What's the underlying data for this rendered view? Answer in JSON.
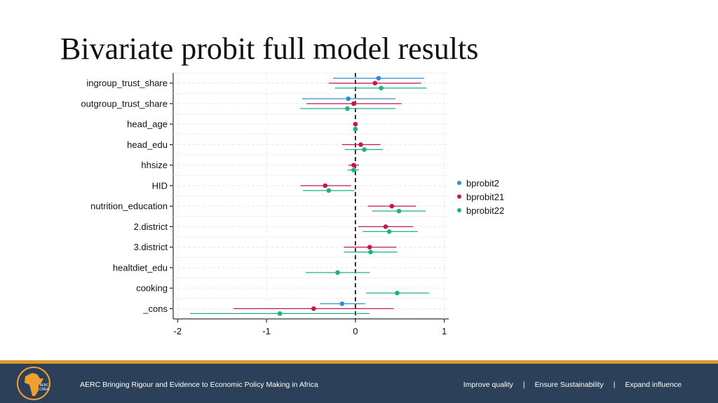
{
  "slide": {
    "title": "Bivariate probit full model results"
  },
  "footer": {
    "tagline": "AERC Bringing Rigour and Evidence to Economic Policy Making in Africa",
    "links": [
      "Improve quality",
      "Ensure Sustainability",
      "Expand influence"
    ],
    "separator": "|",
    "logo_text": "AERC CREA",
    "colors": {
      "bar": "#2d4059",
      "stripe": "#d99a2b",
      "logo": "#f0a030"
    }
  },
  "chart_data": {
    "type": "scatter",
    "subtype": "coefficient-plot",
    "title": "",
    "xlabel": "",
    "ylabel": "",
    "xlim": [
      -2.05,
      1.05
    ],
    "xticks": [
      -2,
      -1,
      0,
      1
    ],
    "xtick_labels": [
      "-2",
      "-1",
      "0",
      "1"
    ],
    "reference_line": 0,
    "grid": true,
    "legend_position": "right",
    "categories": [
      "ingroup_trust_share",
      "outgroup_trust_share",
      "head_age",
      "head_edu",
      "hhsize",
      "HID",
      "nutrition_education",
      "2.district",
      "3.district",
      "healtdiet_edu",
      "cooking",
      "_cons"
    ],
    "series": [
      {
        "name": "bprobit2",
        "color": "#2d8fd6",
        "points": [
          {
            "category": "ingroup_trust_share",
            "estimate": 0.26,
            "ci": [
              -0.25,
              0.77
            ]
          },
          {
            "category": "outgroup_trust_share",
            "estimate": -0.08,
            "ci": [
              -0.6,
              0.45
            ]
          },
          {
            "category": "_cons",
            "estimate": -0.15,
            "ci": [
              -0.4,
              0.11
            ]
          }
        ]
      },
      {
        "name": "bprobit21",
        "color": "#c8174f",
        "points": [
          {
            "category": "ingroup_trust_share",
            "estimate": 0.22,
            "ci": [
              -0.3,
              0.74
            ]
          },
          {
            "category": "outgroup_trust_share",
            "estimate": -0.02,
            "ci": [
              -0.55,
              0.52
            ]
          },
          {
            "category": "head_age",
            "estimate": 0.0,
            "ci": [
              -0.01,
              0.01
            ]
          },
          {
            "category": "head_edu",
            "estimate": 0.06,
            "ci": [
              -0.15,
              0.28
            ]
          },
          {
            "category": "hhsize",
            "estimate": -0.02,
            "ci": [
              -0.08,
              0.04
            ]
          },
          {
            "category": "HID",
            "estimate": -0.34,
            "ci": [
              -0.62,
              -0.05
            ]
          },
          {
            "category": "nutrition_education",
            "estimate": 0.41,
            "ci": [
              0.14,
              0.68
            ]
          },
          {
            "category": "2.district",
            "estimate": 0.34,
            "ci": [
              0.03,
              0.65
            ]
          },
          {
            "category": "3.district",
            "estimate": 0.16,
            "ci": [
              -0.13,
              0.46
            ]
          },
          {
            "category": "_cons",
            "estimate": -0.47,
            "ci": [
              -1.37,
              0.43
            ]
          }
        ]
      },
      {
        "name": "bprobit22",
        "color": "#1fb087",
        "points": [
          {
            "category": "ingroup_trust_share",
            "estimate": 0.29,
            "ci": [
              -0.23,
              0.8
            ]
          },
          {
            "category": "outgroup_trust_share",
            "estimate": -0.09,
            "ci": [
              -0.62,
              0.45
            ]
          },
          {
            "category": "head_age",
            "estimate": 0.0,
            "ci": [
              -0.01,
              0.01
            ]
          },
          {
            "category": "head_edu",
            "estimate": 0.1,
            "ci": [
              -0.12,
              0.31
            ]
          },
          {
            "category": "hhsize",
            "estimate": -0.02,
            "ci": [
              -0.09,
              0.04
            ]
          },
          {
            "category": "HID",
            "estimate": -0.3,
            "ci": [
              -0.59,
              -0.01
            ]
          },
          {
            "category": "nutrition_education",
            "estimate": 0.49,
            "ci": [
              0.19,
              0.79
            ]
          },
          {
            "category": "2.district",
            "estimate": 0.38,
            "ci": [
              0.08,
              0.7
            ]
          },
          {
            "category": "3.district",
            "estimate": 0.17,
            "ci": [
              -0.13,
              0.47
            ]
          },
          {
            "category": "healtdiet_edu",
            "estimate": -0.2,
            "ci": [
              -0.56,
              0.16
            ]
          },
          {
            "category": "cooking",
            "estimate": 0.47,
            "ci": [
              0.12,
              0.83
            ]
          },
          {
            "category": "_cons",
            "estimate": -0.85,
            "ci": [
              -1.86,
              0.16
            ]
          }
        ]
      }
    ]
  }
}
